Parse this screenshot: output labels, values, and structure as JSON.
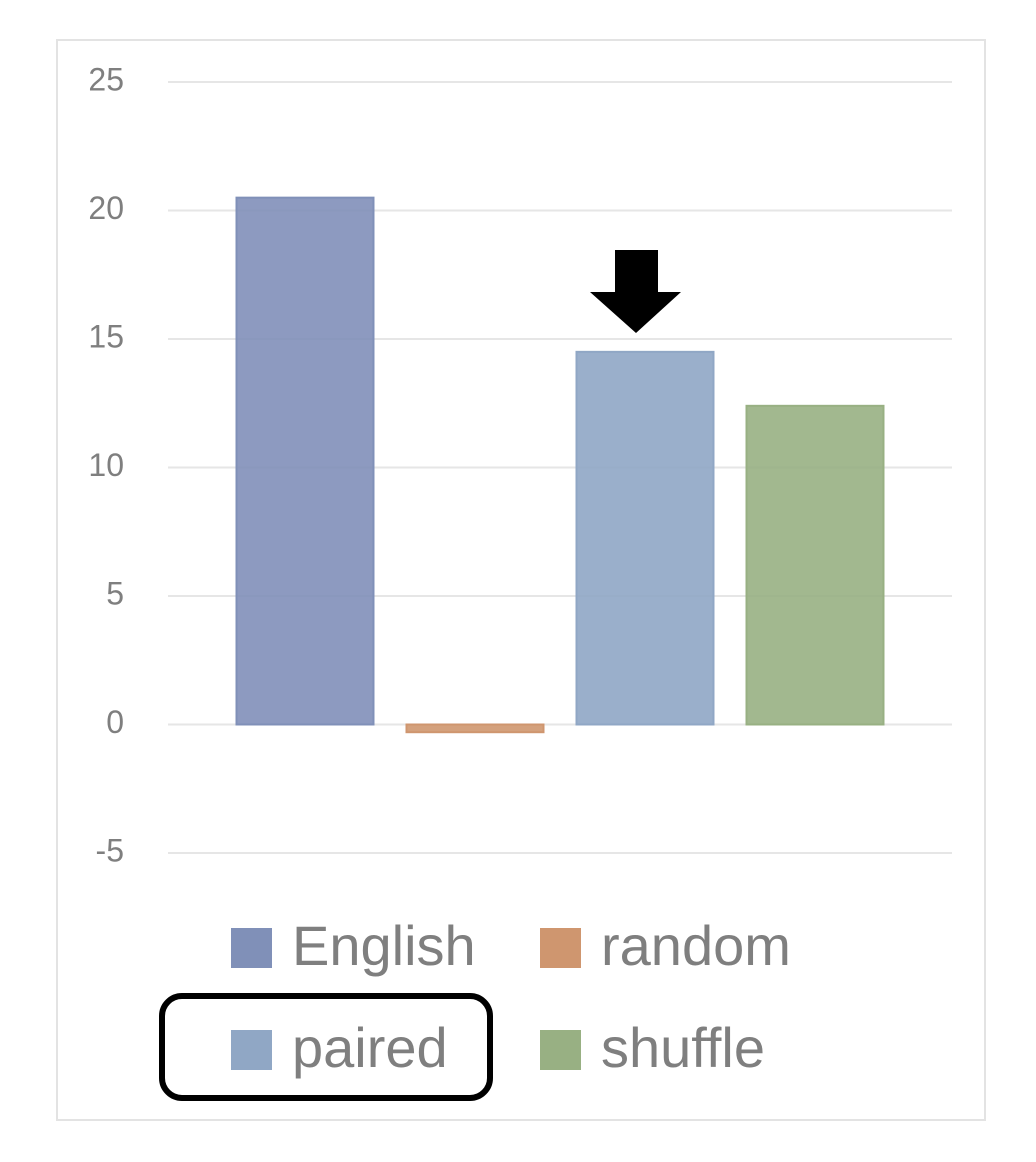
{
  "chart_data": {
    "type": "bar",
    "series": [
      {
        "name": "English",
        "color": "#97a9d9",
        "values": [
          20.5
        ]
      },
      {
        "name": "random",
        "color": "#f4b183",
        "values": [
          -0.3
        ]
      },
      {
        "name": "paired",
        "color": "#a9c4e8",
        "values": [
          14.5
        ]
      },
      {
        "name": "shuffle",
        "color": "#b3cf9a",
        "values": [
          12.4
        ]
      }
    ],
    "ylim": [
      -5,
      25
    ],
    "yticks": [
      -5,
      0,
      5,
      10,
      15,
      20,
      25
    ],
    "grid": true
  }
}
